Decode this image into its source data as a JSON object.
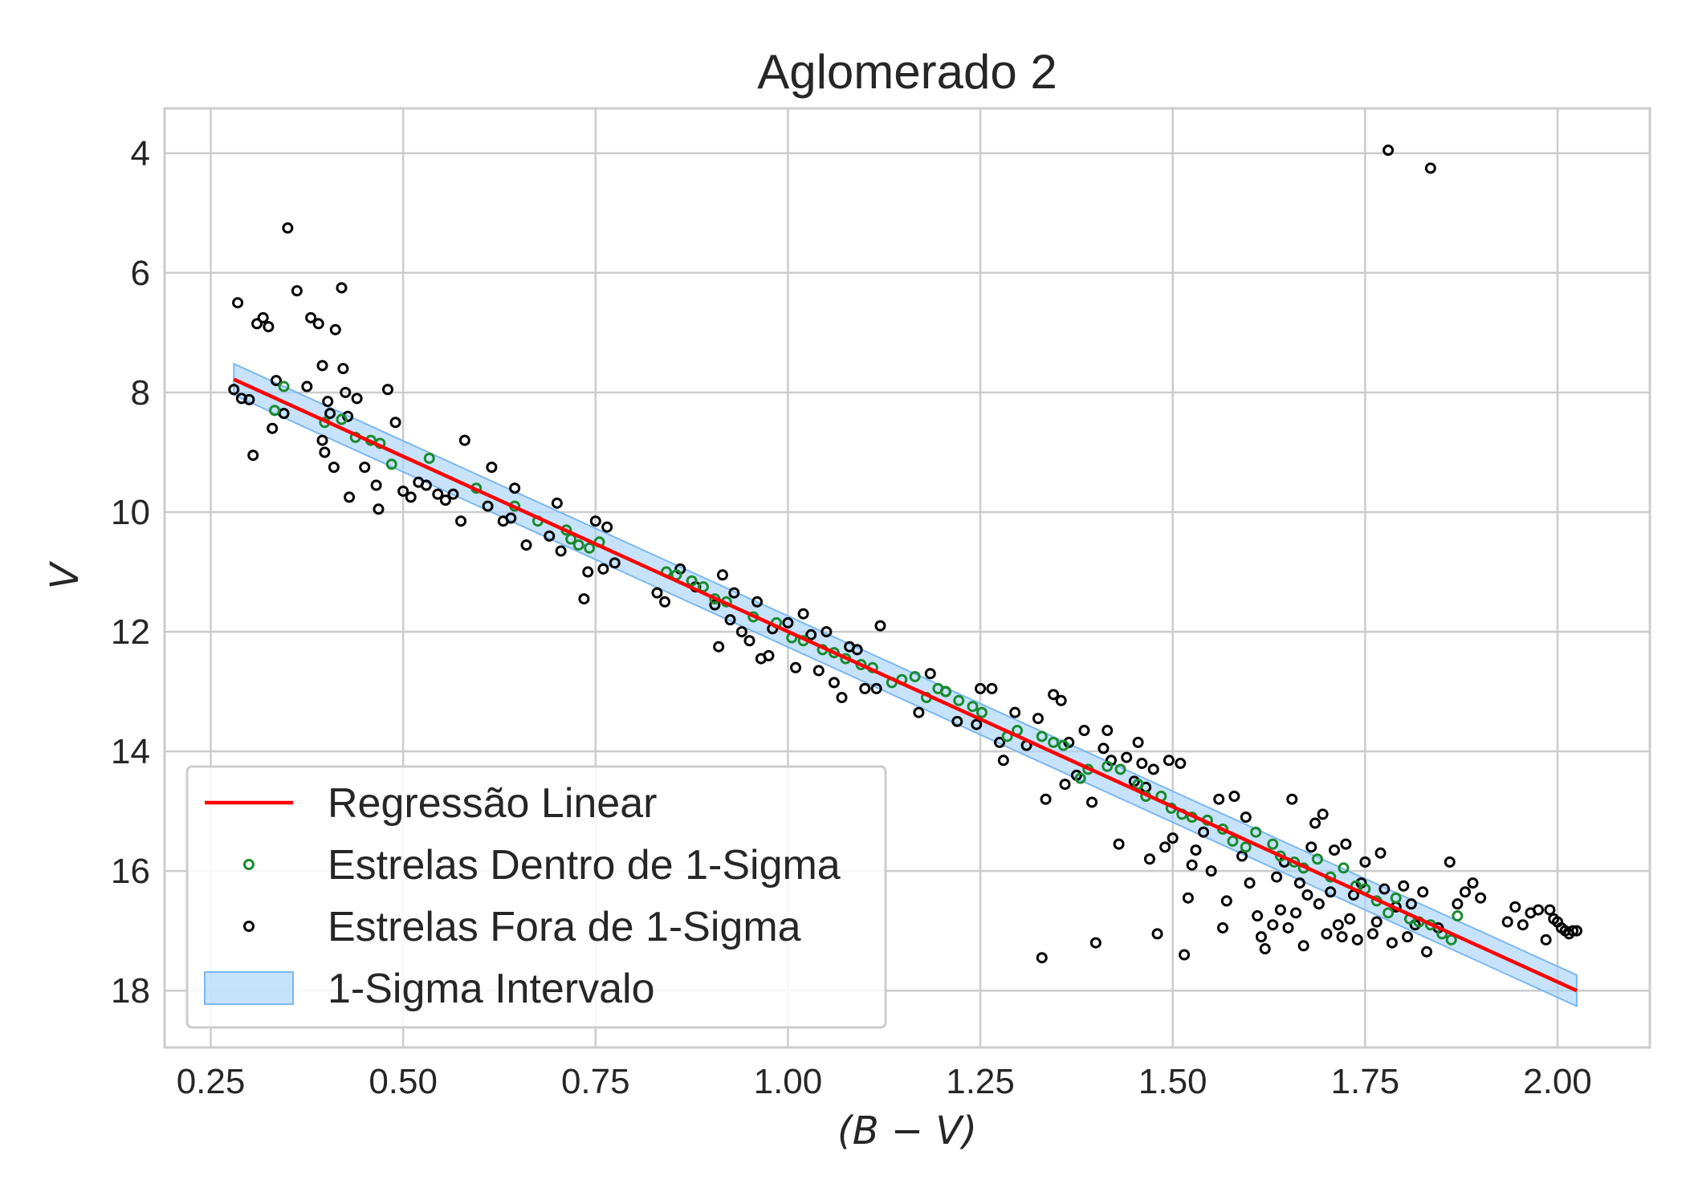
{
  "chart_data": {
    "type": "scatter",
    "title": "Aglomerado 2",
    "xlabel": "(B − V)",
    "ylabel": "V",
    "xlim": [
      0.19,
      2.12
    ],
    "ylim": [
      18.95,
      3.25
    ],
    "y_inverted": true,
    "grid": true,
    "legend_position": "lower-left",
    "x_ticks": [
      "0.25",
      "0.50",
      "0.75",
      "1.00",
      "1.25",
      "1.50",
      "1.75",
      "2.00"
    ],
    "y_ticks": [
      "4",
      "6",
      "8",
      "10",
      "12",
      "14",
      "16",
      "18"
    ],
    "colors": {
      "regression": "#ff0000",
      "inside": "#1a8a2e",
      "outside": "#000000",
      "band_fill": "#a9d4fa",
      "band_edge": "#7ab8f2"
    },
    "regression": {
      "x_start": 0.28,
      "x_end": 2.025,
      "y_start": 7.78,
      "y_end": 18.0,
      "sigma": 0.26
    },
    "legend": [
      {
        "label": "Regressão Linear",
        "kind": "line"
      },
      {
        "label": "Estrelas Dentro de 1-Sigma",
        "kind": "inside"
      },
      {
        "label": "Estrelas Fora de 1-Sigma",
        "kind": "outside"
      },
      {
        "label": "1-Sigma Intervalo",
        "kind": "band"
      }
    ],
    "inside_points": [
      [
        0.333,
        8.3
      ],
      [
        0.345,
        7.9
      ],
      [
        0.398,
        8.5
      ],
      [
        0.42,
        8.45
      ],
      [
        0.438,
        8.75
      ],
      [
        0.458,
        8.8
      ],
      [
        0.47,
        8.85
      ],
      [
        0.485,
        9.2
      ],
      [
        0.534,
        9.1
      ],
      [
        0.595,
        9.6
      ],
      [
        0.645,
        9.9
      ],
      [
        0.675,
        10.15
      ],
      [
        0.712,
        10.3
      ],
      [
        0.718,
        10.45
      ],
      [
        0.728,
        10.55
      ],
      [
        0.742,
        10.6
      ],
      [
        0.755,
        10.5
      ],
      [
        0.842,
        11.0
      ],
      [
        0.855,
        11.05
      ],
      [
        0.875,
        11.15
      ],
      [
        0.89,
        11.25
      ],
      [
        0.905,
        11.45
      ],
      [
        0.92,
        11.5
      ],
      [
        0.955,
        11.75
      ],
      [
        0.985,
        11.85
      ],
      [
        1.005,
        12.1
      ],
      [
        1.02,
        12.15
      ],
      [
        1.045,
        12.3
      ],
      [
        1.06,
        12.35
      ],
      [
        1.075,
        12.45
      ],
      [
        1.095,
        12.55
      ],
      [
        1.11,
        12.6
      ],
      [
        1.135,
        12.85
      ],
      [
        1.148,
        12.8
      ],
      [
        1.165,
        12.75
      ],
      [
        1.18,
        13.1
      ],
      [
        1.195,
        12.95
      ],
      [
        1.205,
        13.0
      ],
      [
        1.222,
        13.15
      ],
      [
        1.24,
        13.25
      ],
      [
        1.252,
        13.35
      ],
      [
        1.285,
        13.75
      ],
      [
        1.298,
        13.65
      ],
      [
        1.33,
        13.75
      ],
      [
        1.345,
        13.85
      ],
      [
        1.358,
        13.9
      ],
      [
        1.38,
        14.45
      ],
      [
        1.39,
        14.3
      ],
      [
        1.415,
        14.25
      ],
      [
        1.432,
        14.3
      ],
      [
        1.455,
        14.55
      ],
      [
        1.465,
        14.75
      ],
      [
        1.485,
        14.75
      ],
      [
        1.498,
        14.95
      ],
      [
        1.512,
        15.05
      ],
      [
        1.525,
        15.1
      ],
      [
        1.545,
        15.15
      ],
      [
        1.565,
        15.3
      ],
      [
        1.578,
        15.5
      ],
      [
        1.595,
        15.6
      ],
      [
        1.608,
        15.35
      ],
      [
        1.63,
        15.55
      ],
      [
        1.64,
        15.75
      ],
      [
        1.658,
        15.85
      ],
      [
        1.67,
        15.95
      ],
      [
        1.688,
        15.8
      ],
      [
        1.705,
        16.1
      ],
      [
        1.722,
        15.95
      ],
      [
        1.738,
        16.25
      ],
      [
        1.75,
        16.3
      ],
      [
        1.765,
        16.5
      ],
      [
        1.78,
        16.7
      ],
      [
        1.79,
        16.45
      ],
      [
        1.808,
        16.8
      ],
      [
        1.82,
        16.85
      ],
      [
        1.835,
        16.9
      ],
      [
        1.85,
        17.05
      ],
      [
        1.862,
        17.15
      ],
      [
        1.87,
        16.75
      ]
    ],
    "outside_points": [
      [
        0.285,
        6.5
      ],
      [
        0.28,
        7.95
      ],
      [
        0.29,
        8.1
      ],
      [
        0.3,
        8.12
      ],
      [
        0.305,
        9.05
      ],
      [
        0.31,
        6.85
      ],
      [
        0.318,
        6.75
      ],
      [
        0.325,
        6.9
      ],
      [
        0.33,
        8.6
      ],
      [
        0.335,
        7.8
      ],
      [
        0.345,
        8.35
      ],
      [
        0.35,
        5.25
      ],
      [
        0.362,
        6.3
      ],
      [
        0.375,
        7.9
      ],
      [
        0.38,
        6.75
      ],
      [
        0.39,
        6.85
      ],
      [
        0.395,
        7.55
      ],
      [
        0.395,
        8.8
      ],
      [
        0.398,
        9.0
      ],
      [
        0.402,
        8.15
      ],
      [
        0.405,
        8.35
      ],
      [
        0.41,
        9.25
      ],
      [
        0.412,
        6.95
      ],
      [
        0.42,
        6.25
      ],
      [
        0.422,
        7.6
      ],
      [
        0.425,
        8.0
      ],
      [
        0.428,
        8.4
      ],
      [
        0.43,
        9.75
      ],
      [
        0.44,
        8.1
      ],
      [
        0.45,
        9.25
      ],
      [
        0.465,
        9.55
      ],
      [
        0.468,
        9.95
      ],
      [
        0.48,
        7.95
      ],
      [
        0.49,
        8.5
      ],
      [
        0.5,
        9.65
      ],
      [
        0.51,
        9.75
      ],
      [
        0.52,
        9.5
      ],
      [
        0.53,
        9.55
      ],
      [
        0.545,
        9.7
      ],
      [
        0.555,
        9.8
      ],
      [
        0.565,
        9.7
      ],
      [
        0.575,
        10.15
      ],
      [
        0.58,
        8.8
      ],
      [
        0.61,
        9.9
      ],
      [
        0.615,
        9.25
      ],
      [
        0.63,
        10.15
      ],
      [
        0.64,
        10.1
      ],
      [
        0.645,
        9.6
      ],
      [
        0.66,
        10.55
      ],
      [
        0.69,
        10.4
      ],
      [
        0.7,
        9.85
      ],
      [
        0.705,
        10.65
      ],
      [
        0.735,
        11.45
      ],
      [
        0.74,
        11.0
      ],
      [
        0.75,
        10.15
      ],
      [
        0.76,
        10.95
      ],
      [
        0.765,
        10.25
      ],
      [
        0.775,
        10.85
      ],
      [
        0.83,
        11.35
      ],
      [
        0.84,
        11.5
      ],
      [
        0.86,
        10.95
      ],
      [
        0.88,
        11.25
      ],
      [
        0.905,
        11.55
      ],
      [
        0.91,
        12.25
      ],
      [
        0.915,
        11.05
      ],
      [
        0.925,
        11.8
      ],
      [
        0.93,
        11.35
      ],
      [
        0.94,
        12.0
      ],
      [
        0.95,
        12.15
      ],
      [
        0.96,
        11.5
      ],
      [
        0.965,
        12.45
      ],
      [
        0.975,
        12.4
      ],
      [
        0.98,
        11.95
      ],
      [
        1.0,
        11.85
      ],
      [
        1.01,
        12.6
      ],
      [
        1.02,
        11.7
      ],
      [
        1.03,
        12.05
      ],
      [
        1.04,
        12.65
      ],
      [
        1.05,
        12.0
      ],
      [
        1.06,
        12.85
      ],
      [
        1.07,
        13.1
      ],
      [
        1.08,
        12.25
      ],
      [
        1.09,
        12.3
      ],
      [
        1.1,
        12.95
      ],
      [
        1.115,
        12.95
      ],
      [
        1.12,
        11.9
      ],
      [
        1.17,
        13.35
      ],
      [
        1.185,
        12.7
      ],
      [
        1.205,
        13.0
      ],
      [
        1.22,
        13.5
      ],
      [
        1.245,
        13.55
      ],
      [
        1.25,
        12.95
      ],
      [
        1.265,
        12.95
      ],
      [
        1.275,
        13.85
      ],
      [
        1.28,
        14.15
      ],
      [
        1.295,
        13.35
      ],
      [
        1.31,
        13.9
      ],
      [
        1.325,
        13.45
      ],
      [
        1.33,
        17.45
      ],
      [
        1.335,
        14.8
      ],
      [
        1.345,
        13.05
      ],
      [
        1.355,
        13.15
      ],
      [
        1.36,
        14.55
      ],
      [
        1.365,
        13.85
      ],
      [
        1.375,
        14.4
      ],
      [
        1.385,
        13.65
      ],
      [
        1.395,
        14.85
      ],
      [
        1.4,
        17.2
      ],
      [
        1.41,
        13.95
      ],
      [
        1.415,
        13.65
      ],
      [
        1.42,
        14.15
      ],
      [
        1.43,
        15.55
      ],
      [
        1.44,
        14.1
      ],
      [
        1.45,
        14.5
      ],
      [
        1.455,
        13.85
      ],
      [
        1.46,
        14.2
      ],
      [
        1.465,
        14.6
      ],
      [
        1.47,
        15.8
      ],
      [
        1.475,
        14.3
      ],
      [
        1.48,
        17.05
      ],
      [
        1.49,
        15.6
      ],
      [
        1.495,
        14.15
      ],
      [
        1.5,
        15.45
      ],
      [
        1.51,
        14.2
      ],
      [
        1.515,
        17.4
      ],
      [
        1.52,
        16.45
      ],
      [
        1.525,
        15.9
      ],
      [
        1.53,
        15.65
      ],
      [
        1.54,
        15.35
      ],
      [
        1.55,
        16.0
      ],
      [
        1.56,
        14.8
      ],
      [
        1.565,
        16.95
      ],
      [
        1.57,
        16.5
      ],
      [
        1.58,
        14.75
      ],
      [
        1.59,
        15.75
      ],
      [
        1.595,
        15.1
      ],
      [
        1.6,
        16.2
      ],
      [
        1.61,
        16.75
      ],
      [
        1.615,
        17.1
      ],
      [
        1.62,
        17.3
      ],
      [
        1.63,
        16.9
      ],
      [
        1.635,
        16.1
      ],
      [
        1.64,
        16.65
      ],
      [
        1.645,
        15.85
      ],
      [
        1.65,
        16.95
      ],
      [
        1.655,
        14.8
      ],
      [
        1.66,
        16.7
      ],
      [
        1.665,
        16.2
      ],
      [
        1.67,
        17.25
      ],
      [
        1.675,
        16.4
      ],
      [
        1.68,
        15.6
      ],
      [
        1.685,
        15.2
      ],
      [
        1.69,
        16.55
      ],
      [
        1.695,
        15.05
      ],
      [
        1.7,
        17.05
      ],
      [
        1.705,
        16.35
      ],
      [
        1.71,
        15.65
      ],
      [
        1.715,
        16.9
      ],
      [
        1.72,
        17.1
      ],
      [
        1.725,
        15.55
      ],
      [
        1.73,
        16.8
      ],
      [
        1.735,
        16.4
      ],
      [
        1.74,
        17.15
      ],
      [
        1.745,
        16.2
      ],
      [
        1.75,
        15.85
      ],
      [
        1.76,
        17.05
      ],
      [
        1.765,
        16.85
      ],
      [
        1.77,
        15.7
      ],
      [
        1.775,
        16.3
      ],
      [
        1.78,
        3.95
      ],
      [
        1.785,
        17.2
      ],
      [
        1.79,
        16.6
      ],
      [
        1.8,
        16.25
      ],
      [
        1.805,
        17.1
      ],
      [
        1.81,
        16.55
      ],
      [
        1.815,
        16.9
      ],
      [
        1.825,
        16.35
      ],
      [
        1.83,
        17.35
      ],
      [
        1.835,
        4.25
      ],
      [
        1.845,
        16.95
      ],
      [
        1.86,
        15.85
      ],
      [
        1.87,
        16.55
      ],
      [
        1.88,
        16.35
      ],
      [
        1.89,
        16.2
      ],
      [
        1.9,
        16.45
      ],
      [
        1.935,
        16.85
      ],
      [
        1.945,
        16.6
      ],
      [
        1.955,
        16.9
      ],
      [
        1.965,
        16.7
      ],
      [
        1.975,
        16.65
      ],
      [
        1.985,
        17.15
      ],
      [
        1.99,
        16.65
      ],
      [
        1.995,
        16.8
      ],
      [
        2.0,
        16.85
      ],
      [
        2.005,
        16.95
      ],
      [
        2.01,
        17.0
      ],
      [
        2.015,
        17.05
      ],
      [
        2.02,
        17.0
      ],
      [
        2.025,
        17.0
      ]
    ]
  }
}
